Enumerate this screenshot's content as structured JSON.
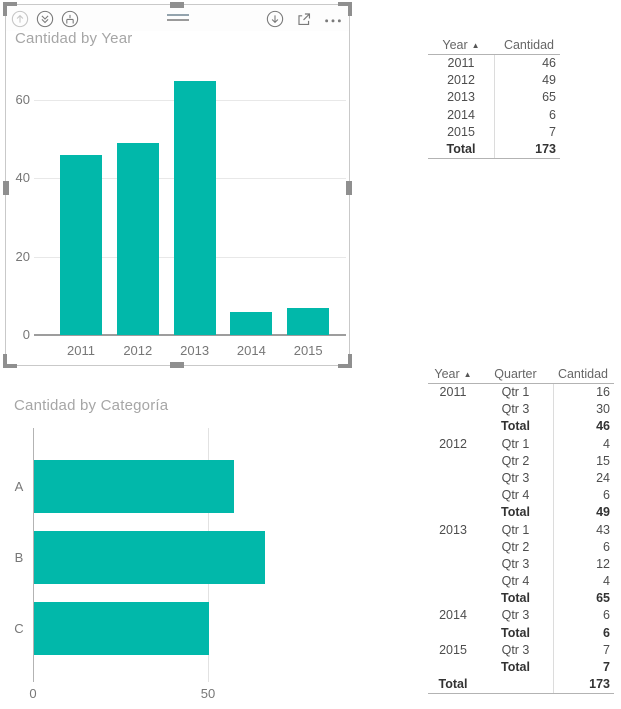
{
  "accent_color": "#01B8AA",
  "visual1": {
    "title": "Cantidad by Year",
    "header_icons": [
      {
        "name": "drill-up-icon",
        "state": "disabled"
      },
      {
        "name": "drill-down-next-level-icon",
        "state": "enabled"
      },
      {
        "name": "expand-all-icon",
        "state": "enabled"
      },
      {
        "name": "drag-handle",
        "state": "enabled"
      },
      {
        "name": "drill-mode-icon",
        "state": "enabled"
      },
      {
        "name": "focus-mode-icon",
        "state": "enabled"
      },
      {
        "name": "more-options-icon",
        "state": "enabled"
      }
    ]
  },
  "visual2": {
    "title": "Cantidad by Categoría"
  },
  "chart_data": [
    {
      "type": "bar",
      "orientation": "vertical",
      "title": "Cantidad by Year",
      "categories": [
        "2011",
        "2012",
        "2013",
        "2014",
        "2015"
      ],
      "values": [
        46,
        49,
        65,
        6,
        7
      ],
      "xlabel": "",
      "ylabel": "",
      "yticks": [
        0,
        20,
        40,
        60
      ],
      "ylim": [
        0,
        70
      ],
      "bar_color": "#01B8AA",
      "grid": true,
      "legend": false
    },
    {
      "type": "bar",
      "orientation": "horizontal",
      "title": "Cantidad by Categoría",
      "categories": [
        "A",
        "B",
        "C"
      ],
      "values": [
        57,
        66,
        50
      ],
      "xlabel": "",
      "ylabel": "",
      "xticks": [
        0,
        50
      ],
      "xlim": [
        0,
        70
      ],
      "bar_color": "#01B8AA",
      "grid": true,
      "legend": false
    }
  ],
  "table1": {
    "columns": [
      "Year",
      "Cantidad"
    ],
    "sort": {
      "column": "Year",
      "direction": "asc"
    },
    "rows": [
      [
        "2011",
        "46"
      ],
      [
        "2012",
        "49"
      ],
      [
        "2013",
        "65"
      ],
      [
        "2014",
        "6"
      ],
      [
        "2015",
        "7"
      ],
      [
        "Total",
        "173"
      ]
    ]
  },
  "table2": {
    "columns": [
      "Year",
      "Quarter",
      "Cantidad"
    ],
    "sort": {
      "column": "Year",
      "direction": "asc"
    },
    "rows": [
      [
        "2011",
        "Qtr 1",
        "16"
      ],
      [
        "",
        "Qtr 3",
        "30"
      ],
      [
        "",
        "Total",
        "46"
      ],
      [
        "2012",
        "Qtr 1",
        "4"
      ],
      [
        "",
        "Qtr 2",
        "15"
      ],
      [
        "",
        "Qtr 3",
        "24"
      ],
      [
        "",
        "Qtr 4",
        "6"
      ],
      [
        "",
        "Total",
        "49"
      ],
      [
        "2013",
        "Qtr 1",
        "43"
      ],
      [
        "",
        "Qtr 2",
        "6"
      ],
      [
        "",
        "Qtr 3",
        "12"
      ],
      [
        "",
        "Qtr 4",
        "4"
      ],
      [
        "",
        "Total",
        "65"
      ],
      [
        "2014",
        "Qtr 3",
        "6"
      ],
      [
        "",
        "Total",
        "6"
      ],
      [
        "2015",
        "Qtr 3",
        "7"
      ],
      [
        "",
        "Total",
        "7"
      ],
      [
        "Total",
        "",
        "173"
      ]
    ]
  }
}
